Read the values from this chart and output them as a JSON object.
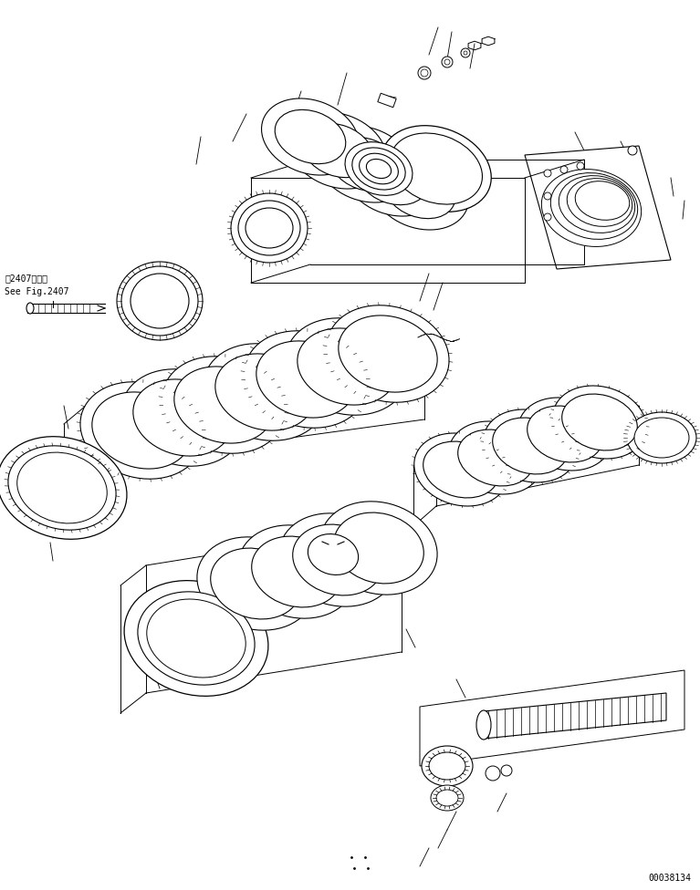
{
  "bg_color": "#ffffff",
  "line_color": "#000000",
  "fig_width": 7.67,
  "fig_height": 9.76,
  "dpi": 100,
  "part_number": "00038134",
  "see_fig_text_jp": "第2407図参照",
  "see_fig_text_en": "See Fig.2407"
}
